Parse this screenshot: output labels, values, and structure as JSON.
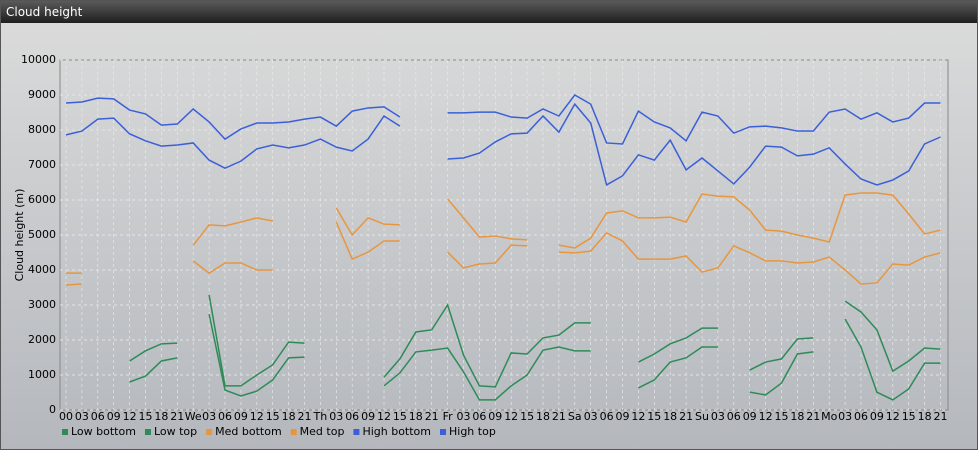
{
  "title": "Cloud height",
  "chart_data": {
    "type": "line",
    "ylabel": "Cloud height (m)",
    "categories": [
      "00",
      "03",
      "06",
      "09",
      "12",
      "15",
      "18",
      "21",
      "We",
      "03",
      "06",
      "09",
      "12",
      "15",
      "18",
      "21",
      "Th",
      "03",
      "06",
      "09",
      "12",
      "15",
      "18",
      "21",
      "Fr",
      "03",
      "06",
      "09",
      "12",
      "15",
      "18",
      "21",
      "Sa",
      "03",
      "06",
      "09",
      "12",
      "15",
      "18",
      "21",
      "Su",
      "03",
      "06",
      "09",
      "12",
      "15",
      "18",
      "21",
      "Mo",
      "03",
      "06",
      "09",
      "12",
      "15",
      "18",
      "21"
    ],
    "ylim": [
      0,
      10000
    ],
    "yticks": [
      0,
      1000,
      2000,
      3000,
      4000,
      5000,
      6000,
      7000,
      8000,
      9000,
      10000
    ],
    "grid": true,
    "series": [
      {
        "name": "Low bottom",
        "color": "#2e8b57",
        "values": [
          null,
          null,
          null,
          null,
          800,
          970,
          1400,
          1490,
          null,
          2740,
          570,
          400,
          540,
          860,
          1490,
          1510,
          null,
          null,
          null,
          null,
          690,
          1060,
          1660,
          1710,
          1770,
          1090,
          290,
          290,
          690,
          1000,
          1710,
          1800,
          1690,
          1690,
          null,
          null,
          630,
          860,
          1370,
          1490,
          1800,
          1800,
          null,
          510,
          430,
          770,
          1600,
          1660,
          null,
          2600,
          1800,
          510,
          290,
          600,
          1340,
          1340
        ]
      },
      {
        "name": "Low top",
        "color": "#2e8b57",
        "values": [
          null,
          null,
          null,
          null,
          1400,
          1690,
          1890,
          1910,
          null,
          3290,
          690,
          690,
          1000,
          1290,
          1940,
          1910,
          null,
          null,
          null,
          null,
          940,
          1460,
          2230,
          2290,
          3000,
          1570,
          690,
          660,
          1630,
          1600,
          2060,
          2140,
          2490,
          2490,
          null,
          null,
          1370,
          1600,
          1890,
          2060,
          2340,
          2340,
          null,
          1140,
          1370,
          1460,
          2030,
          2060,
          null,
          3110,
          2800,
          2290,
          1110,
          1400,
          1770,
          1740
        ]
      },
      {
        "name": "Med bottom",
        "color": "#e8963e",
        "values": [
          3570,
          3600,
          null,
          null,
          null,
          null,
          null,
          null,
          4260,
          3910,
          4200,
          4200,
          4000,
          4000,
          null,
          null,
          null,
          5370,
          4310,
          4510,
          4830,
          4830,
          null,
          null,
          4510,
          4060,
          4170,
          4200,
          4710,
          4690,
          null,
          4510,
          4490,
          4540,
          5060,
          4830,
          4310,
          4310,
          4310,
          4400,
          3940,
          4060,
          4690,
          4490,
          4260,
          4260,
          4200,
          4230,
          4370,
          4000,
          3600,
          3630,
          4170,
          4140,
          4370,
          4490
        ]
      },
      {
        "name": "Med top",
        "color": "#e8963e",
        "values": [
          3910,
          3910,
          null,
          null,
          null,
          null,
          null,
          null,
          4710,
          5290,
          5260,
          5370,
          5490,
          5400,
          null,
          null,
          null,
          5770,
          5000,
          5490,
          5310,
          5290,
          null,
          null,
          6030,
          5490,
          4940,
          4970,
          4890,
          4860,
          null,
          4710,
          4630,
          4910,
          5630,
          5690,
          5490,
          5490,
          5510,
          5370,
          6170,
          6110,
          6090,
          5710,
          5140,
          5110,
          5000,
          4910,
          4800,
          6140,
          6200,
          6200,
          6140,
          5600,
          5030,
          5140
        ]
      },
      {
        "name": "High bottom",
        "color": "#3a5fd9",
        "values": [
          7860,
          7970,
          8310,
          8340,
          7890,
          7690,
          7540,
          7570,
          7630,
          7140,
          6910,
          7110,
          7460,
          7570,
          7490,
          7570,
          7740,
          7510,
          7400,
          7740,
          8400,
          8110,
          null,
          null,
          7170,
          7200,
          7340,
          7660,
          7890,
          7910,
          8400,
          7940,
          8740,
          8200,
          6430,
          6690,
          7290,
          7140,
          7710,
          6860,
          7200,
          6830,
          6460,
          6940,
          7540,
          7510,
          7260,
          7310,
          7490,
          7030,
          6600,
          6430,
          6570,
          6830,
          7600,
          7800
        ]
      },
      {
        "name": "High top",
        "color": "#3a5fd9",
        "values": [
          8770,
          8800,
          8910,
          8890,
          8570,
          8460,
          8140,
          8170,
          8600,
          8230,
          7740,
          8030,
          8200,
          8200,
          8230,
          8310,
          8370,
          8110,
          8540,
          8630,
          8660,
          8370,
          null,
          null,
          8490,
          8490,
          8510,
          8510,
          8370,
          8340,
          8600,
          8400,
          9000,
          8740,
          7630,
          7600,
          8540,
          8230,
          8060,
          7690,
          8510,
          8400,
          7910,
          8090,
          8110,
          8060,
          7970,
          7970,
          8510,
          8600,
          8310,
          8490,
          8230,
          8340,
          8770,
          8770
        ]
      }
    ]
  }
}
